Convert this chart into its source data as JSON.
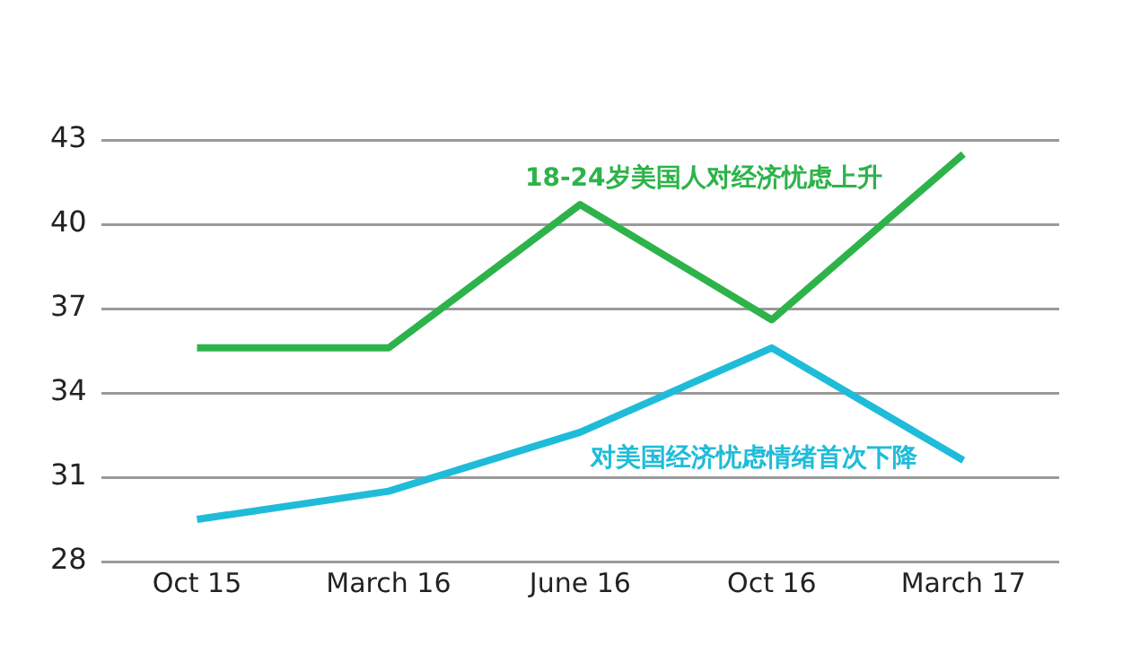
{
  "chart_data": {
    "type": "line",
    "categories": [
      "Oct 15",
      "March 16",
      "June 16",
      "Oct 16",
      "March 17"
    ],
    "series": [
      {
        "name": "18-24岁美国人对经济忧虑上升",
        "color": "#2db34a",
        "values": [
          35.6,
          35.6,
          40.7,
          36.6,
          42.5
        ]
      },
      {
        "name": "对美国经济忧虑情绪首次下降",
        "color": "#1fbcd9",
        "values": [
          29.5,
          30.5,
          32.6,
          35.6,
          31.6
        ]
      }
    ],
    "ylim": [
      28,
      43
    ],
    "yticks": [
      28,
      31,
      34,
      37,
      40,
      43
    ],
    "grid": "y",
    "legend": false,
    "marker": "none",
    "line_style": "solid"
  }
}
